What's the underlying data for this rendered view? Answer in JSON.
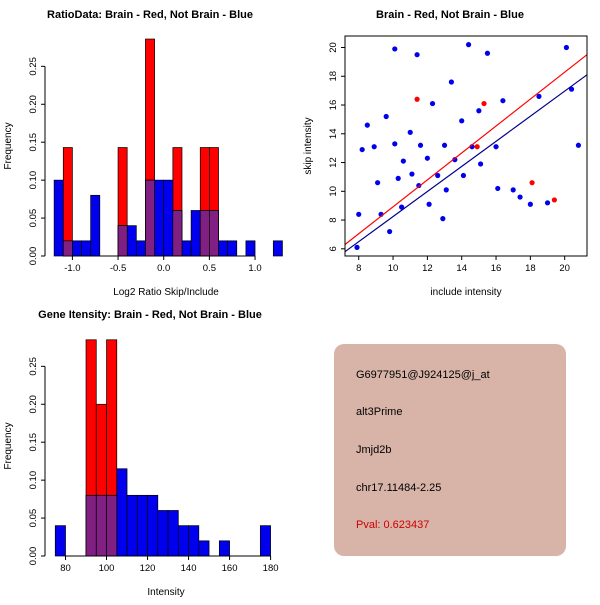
{
  "colors": {
    "background": "#ffffff",
    "brain_red": "#ff0000",
    "not_brain_blue": "#0000ee",
    "overlap_purple": "#802082",
    "fit_line_navy": "#00008b",
    "info_bg": "#d8b4a8",
    "pval_red": "#cd0000",
    "axis_black": "#000000"
  },
  "info_panel": {
    "probe_id": "G6977951@J924125@j_at",
    "event_type": "alt3Prime",
    "gene": "Jmjd2b",
    "location": "chr17.11484-2.25",
    "pval": "Pval: 0.623437"
  },
  "chart_data": [
    {
      "type": "histogram",
      "title": "RatioData: Brain - Red, Not Brain - Blue",
      "xlabel": "Log2 Ratio Skip/Include",
      "ylabel": "Frequency",
      "xlim": [
        -1.3,
        1.35
      ],
      "ylim": [
        0,
        0.29
      ],
      "xticks": [
        -1.0,
        -0.5,
        0.0,
        0.5,
        1.0
      ],
      "xtick_labels": [
        "-1.0",
        "-0.5",
        "0.0",
        "0.5",
        "1.0"
      ],
      "yticks": [
        0,
        0.05,
        0.1,
        0.15,
        0.2,
        0.25
      ],
      "ytick_labels": [
        "0.00",
        "0.05",
        "0.10",
        "0.15",
        "0.20",
        "0.25"
      ],
      "box": false,
      "overlap_color": "#802082",
      "legend": "Brain - Red, Not Brain - Blue",
      "series": [
        {
          "name": "Brain",
          "color": "#ff0000",
          "bin_width": 0.1,
          "bins": [
            [
              -1.1,
              0.143
            ],
            [
              -0.5,
              0.143
            ],
            [
              -0.2,
              0.286
            ],
            [
              0.1,
              0.143
            ],
            [
              0.4,
              0.143
            ],
            [
              0.5,
              0.143
            ]
          ]
        },
        {
          "name": "Not Brain",
          "color": "#0000ee",
          "bin_width": 0.1,
          "bins": [
            [
              -1.2,
              0.1
            ],
            [
              -1.1,
              0.02
            ],
            [
              -1.0,
              0.02
            ],
            [
              -0.9,
              0.02
            ],
            [
              -0.8,
              0.08
            ],
            [
              -0.5,
              0.04
            ],
            [
              -0.4,
              0.04
            ],
            [
              -0.3,
              0.02
            ],
            [
              -0.2,
              0.1
            ],
            [
              -0.1,
              0.1
            ],
            [
              0.0,
              0.1
            ],
            [
              0.1,
              0.06
            ],
            [
              0.2,
              0.02
            ],
            [
              0.3,
              0.06
            ],
            [
              0.4,
              0.06
            ],
            [
              0.5,
              0.06
            ],
            [
              0.6,
              0.02
            ],
            [
              0.7,
              0.02
            ],
            [
              0.9,
              0.02
            ],
            [
              1.2,
              0.02
            ]
          ]
        }
      ]
    },
    {
      "type": "scatter",
      "title": "Brain - Red, Not Brain - Blue",
      "xlabel": "include intensity",
      "ylabel": "skip intensity",
      "xlim": [
        7.2,
        21.3
      ],
      "ylim": [
        5.5,
        20.8
      ],
      "xticks": [
        8,
        10,
        12,
        14,
        16,
        18,
        20
      ],
      "xtick_labels": [
        "8",
        "10",
        "12",
        "14",
        "16",
        "18",
        "20"
      ],
      "yticks": [
        6,
        8,
        10,
        12,
        14,
        16,
        18,
        20
      ],
      "ytick_labels": [
        "6",
        "8",
        "10",
        "12",
        "14",
        "16",
        "18",
        "20"
      ],
      "box": true,
      "series": [
        {
          "name": "Not Brain",
          "color": "#0000ee",
          "points": [
            [
              7.9,
              6.1
            ],
            [
              8.0,
              8.4
            ],
            [
              8.2,
              12.9
            ],
            [
              8.5,
              14.6
            ],
            [
              8.9,
              13.1
            ],
            [
              9.1,
              10.6
            ],
            [
              9.3,
              8.4
            ],
            [
              9.6,
              15.2
            ],
            [
              9.8,
              7.2
            ],
            [
              10.1,
              19.9
            ],
            [
              10.1,
              13.3
            ],
            [
              10.3,
              10.9
            ],
            [
              10.5,
              8.9
            ],
            [
              10.6,
              12.1
            ],
            [
              11.0,
              14.1
            ],
            [
              11.1,
              11.2
            ],
            [
              11.4,
              19.5
            ],
            [
              11.5,
              10.4
            ],
            [
              11.6,
              13.2
            ],
            [
              12.0,
              12.3
            ],
            [
              12.1,
              9.1
            ],
            [
              12.3,
              16.1
            ],
            [
              12.6,
              11.1
            ],
            [
              12.9,
              8.1
            ],
            [
              13.0,
              13.2
            ],
            [
              13.1,
              10.1
            ],
            [
              13.4,
              17.6
            ],
            [
              13.6,
              12.2
            ],
            [
              14.0,
              14.9
            ],
            [
              14.1,
              11.1
            ],
            [
              14.4,
              20.2
            ],
            [
              14.6,
              13.1
            ],
            [
              15.0,
              15.6
            ],
            [
              15.1,
              11.9
            ],
            [
              15.5,
              19.6
            ],
            [
              16.0,
              13.1
            ],
            [
              16.1,
              10.2
            ],
            [
              16.4,
              16.3
            ],
            [
              17.0,
              10.1
            ],
            [
              17.4,
              9.6
            ],
            [
              18.0,
              9.1
            ],
            [
              18.5,
              16.6
            ],
            [
              19.0,
              9.2
            ],
            [
              20.1,
              20.0
            ],
            [
              20.4,
              17.1
            ],
            [
              20.8,
              13.2
            ]
          ]
        },
        {
          "name": "Brain",
          "color": "#ff0000",
          "points": [
            [
              11.4,
              16.4
            ],
            [
              14.9,
              13.1
            ],
            [
              15.3,
              16.1
            ],
            [
              18.1,
              10.6
            ],
            [
              19.4,
              9.4
            ]
          ]
        }
      ],
      "lines": [
        {
          "name": "not-brain-fit",
          "color": "#00008b",
          "x1": 7.2,
          "y1": 5.8,
          "x2": 21.3,
          "y2": 18.1
        },
        {
          "name": "brain-fit",
          "color": "#ff0000",
          "x1": 7.2,
          "y1": 6.3,
          "x2": 21.3,
          "y2": 19.5
        }
      ]
    },
    {
      "type": "histogram",
      "title": "Gene Itensity: Brain - Red, Not Brain - Blue",
      "xlabel": "Intensity",
      "ylabel": "Frequency",
      "xlim": [
        70,
        188
      ],
      "ylim": [
        0,
        0.29
      ],
      "xticks": [
        80,
        100,
        120,
        140,
        160,
        180
      ],
      "xtick_labels": [
        "80",
        "100",
        "120",
        "140",
        "160",
        "180"
      ],
      "yticks": [
        0,
        0.05,
        0.1,
        0.15,
        0.2,
        0.25
      ],
      "ytick_labels": [
        "0.00",
        "0.05",
        "0.10",
        "0.15",
        "0.20",
        "0.25"
      ],
      "box": false,
      "overlap_color": "#802082",
      "legend": "Brain - Red, Not Brain - Blue",
      "series": [
        {
          "name": "Brain",
          "color": "#ff0000",
          "bin_width": 5,
          "bins": [
            [
              90,
              0.285
            ],
            [
              95,
              0.2
            ],
            [
              100,
              0.285
            ]
          ]
        },
        {
          "name": "Not Brain",
          "color": "#0000ee",
          "bin_width": 5,
          "bins": [
            [
              75,
              0.04
            ],
            [
              90,
              0.08
            ],
            [
              95,
              0.08
            ],
            [
              100,
              0.08
            ],
            [
              105,
              0.115
            ],
            [
              110,
              0.08
            ],
            [
              115,
              0.08
            ],
            [
              120,
              0.08
            ],
            [
              125,
              0.06
            ],
            [
              130,
              0.06
            ],
            [
              135,
              0.04
            ],
            [
              140,
              0.04
            ],
            [
              145,
              0.02
            ],
            [
              155,
              0.02
            ],
            [
              175,
              0.04
            ]
          ]
        }
      ]
    }
  ]
}
